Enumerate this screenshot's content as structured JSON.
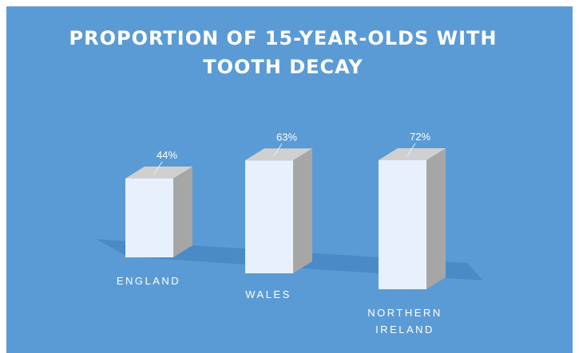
{
  "chart_data": {
    "type": "bar",
    "title_lines": [
      "PROPORTION OF 15-YEAR-OLDS WITH",
      "TOOTH DECAY"
    ],
    "categories": [
      [
        "ENGLAND"
      ],
      [
        "WALES"
      ],
      [
        "NORTHERN",
        "IRELAND"
      ]
    ],
    "values": [
      44,
      63,
      72
    ],
    "data_labels": [
      "44%",
      "63%",
      "72%"
    ],
    "value_unit": "%",
    "style": "3d-column",
    "grid": false,
    "legend": "none",
    "colors": {
      "background": "#5b9bd5",
      "bar_front": "#e8f0fb",
      "bar_side": "#a6a6a6",
      "bar_top": "#d0d0d0",
      "floor": "#4a8ac6",
      "text": "#ffffff"
    }
  }
}
